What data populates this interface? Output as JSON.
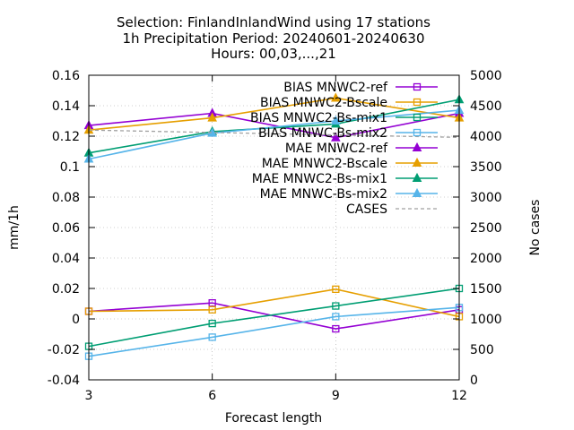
{
  "chart_data": {
    "type": "line",
    "title_lines": [
      "Selection: FinlandInlandWind using    17 stations",
      "1h Precipitation   Period: 20240601-20240630",
      "Hours: 00,03,...,21"
    ],
    "xlabel": "Forecast length",
    "ylabel": "mm/1h",
    "y2label": "No cases",
    "x": [
      3,
      6,
      9,
      12
    ],
    "xticks": [
      "3",
      "6",
      "9",
      "12"
    ],
    "xlim": [
      3,
      12
    ],
    "ylim": [
      -0.04,
      0.16
    ],
    "yticks": [
      "-0.04",
      "-0.02",
      "0",
      "0.02",
      "0.04",
      "0.06",
      "0.08",
      "0.1",
      "0.12",
      "0.14",
      "0.16"
    ],
    "y2lim": [
      0,
      5000
    ],
    "y2ticks": [
      "0",
      "500",
      "1000",
      "1500",
      "2000",
      "2500",
      "3000",
      "3500",
      "4000",
      "4500",
      "5000"
    ],
    "grid": true,
    "legend_position": "top-right",
    "series": [
      {
        "name": "BIAS MNWC2-ref",
        "color": "#9400d3",
        "marker": "square",
        "axis": "left",
        "values": [
          0.005,
          0.0105,
          -0.0065,
          0.006
        ]
      },
      {
        "name": "BIAS MNWC2-Bscale",
        "color": "#e69f00",
        "marker": "square",
        "axis": "left",
        "values": [
          0.005,
          0.006,
          0.0195,
          0.0015
        ]
      },
      {
        "name": "BIAS MNWC2-Bs-mix1",
        "color": "#009e73",
        "marker": "square",
        "axis": "left",
        "values": [
          -0.018,
          -0.003,
          0.0085,
          0.02
        ]
      },
      {
        "name": "BIAS MNWC-Bs-mix2",
        "color": "#56b4e9",
        "marker": "square",
        "axis": "left",
        "values": [
          -0.0245,
          -0.012,
          0.0015,
          0.0075
        ]
      },
      {
        "name": "MAE MNWC2-ref",
        "color": "#9400d3",
        "marker": "triangle",
        "axis": "left",
        "values": [
          0.127,
          0.135,
          0.119,
          0.135
        ]
      },
      {
        "name": "MAE MNWC2-Bscale",
        "color": "#e69f00",
        "marker": "triangle",
        "axis": "left",
        "values": [
          0.124,
          0.132,
          0.145,
          0.132
        ]
      },
      {
        "name": "MAE MNWC2-Bs-mix1",
        "color": "#009e73",
        "marker": "triangle",
        "axis": "left",
        "values": [
          0.109,
          0.123,
          0.128,
          0.144
        ]
      },
      {
        "name": "MAE MNWC-Bs-mix2",
        "color": "#56b4e9",
        "marker": "triangle",
        "axis": "left",
        "values": [
          0.105,
          0.122,
          0.13,
          0.137
        ]
      },
      {
        "name": "CASES",
        "color": "#a0a0a0",
        "marker": "none",
        "dashed": true,
        "axis": "right",
        "values": [
          4100,
          4060,
          4020,
          3980
        ]
      }
    ]
  }
}
